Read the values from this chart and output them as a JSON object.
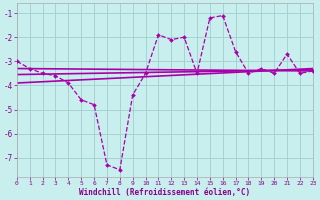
{
  "x_range": [
    0,
    23
  ],
  "y_range": [
    -7.8,
    -0.6
  ],
  "y_ticks": [
    -7,
    -6,
    -5,
    -4,
    -3,
    -2,
    -1
  ],
  "x_ticks": [
    0,
    1,
    2,
    3,
    4,
    5,
    6,
    7,
    8,
    9,
    10,
    11,
    12,
    13,
    14,
    15,
    16,
    17,
    18,
    19,
    20,
    21,
    22,
    23
  ],
  "xlabel": "Windchill (Refroidissement éolien,°C)",
  "background_color": "#c8eeed",
  "grid_color": "#a0d0ce",
  "line_color": "#aa00aa",
  "main_line": {
    "x": [
      0,
      1,
      2,
      3,
      4,
      5,
      6,
      7,
      8,
      9,
      10,
      11,
      12,
      13,
      14,
      15,
      16,
      17,
      18,
      19,
      20,
      21,
      22,
      23
    ],
    "y": [
      -3.0,
      -3.3,
      -3.5,
      -3.6,
      -3.9,
      -4.6,
      -4.8,
      -7.3,
      -7.5,
      -4.4,
      -3.5,
      -1.9,
      -2.1,
      -2.0,
      -3.5,
      -1.2,
      -1.1,
      -2.6,
      -3.5,
      -3.3,
      -3.5,
      -2.7,
      -3.5,
      -3.4
    ]
  },
  "trend_lines": [
    {
      "x": [
        0,
        23
      ],
      "y": [
        -3.3,
        -3.4
      ]
    },
    {
      "x": [
        0,
        23
      ],
      "y": [
        -3.55,
        -3.35
      ]
    },
    {
      "x": [
        0,
        23
      ],
      "y": [
        -3.9,
        -3.3
      ]
    }
  ]
}
